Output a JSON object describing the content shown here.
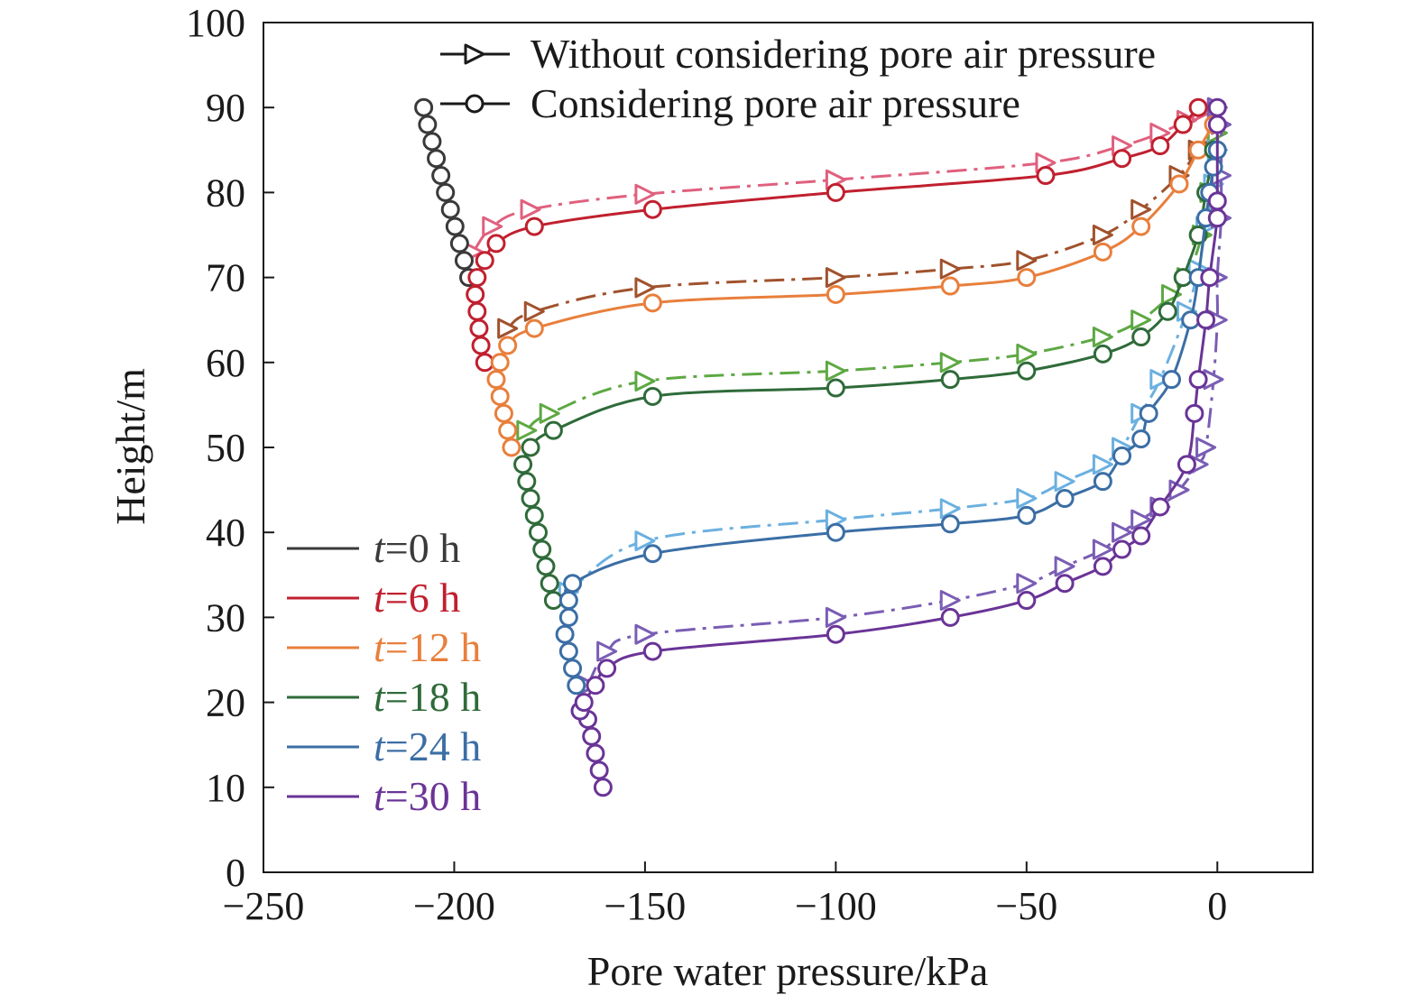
{
  "chart_data": {
    "type": "line",
    "title": "",
    "xlabel": "Pore water pressure/kPa",
    "ylabel": "Height/m",
    "xlim": [
      -250,
      25
    ],
    "ylim": [
      0,
      100
    ],
    "xticks": [
      -250,
      -200,
      -150,
      -100,
      -50,
      0
    ],
    "xtick_labels": [
      "−250",
      "−200",
      "−150",
      "−100",
      "−50",
      "0"
    ],
    "yticks": [
      0,
      10,
      20,
      30,
      40,
      50,
      60,
      70,
      80,
      90,
      100
    ],
    "ytick_labels": [
      "0",
      "10",
      "20",
      "30",
      "40",
      "50",
      "60",
      "70",
      "80",
      "90",
      "100"
    ],
    "grid": false,
    "legends": {
      "method": {
        "placement": "top-right",
        "entries": [
          {
            "label": "Without considering pore air pressure",
            "marker": "triangle-right",
            "line": "dash-dot"
          },
          {
            "label": "Considering pore air pressure",
            "marker": "circle",
            "line": "solid"
          }
        ]
      },
      "time": {
        "placement": "lower-left",
        "entries": [
          {
            "label_prefix": "t",
            "label_suffix": "=0 h",
            "color": "#3a3a3a"
          },
          {
            "label_prefix": "t",
            "label_suffix": "=6 h",
            "color": "#c0202f"
          },
          {
            "label_prefix": "t",
            "label_suffix": "=12 h",
            "color": "#e87f3c"
          },
          {
            "label_prefix": "t",
            "label_suffix": "=18 h",
            "color": "#2f6b3a"
          },
          {
            "label_prefix": "t",
            "label_suffix": "=24 h",
            "color": "#3b6ea5"
          },
          {
            "label_prefix": "t",
            "label_suffix": "=30 h",
            "color": "#6a3497"
          }
        ]
      }
    },
    "series": [
      {
        "time": "t=0 h",
        "method": "considering",
        "color": "#3a3a3a",
        "points": [
          [
            -208,
            90
          ],
          [
            -207,
            88
          ],
          [
            -205.8,
            86
          ],
          [
            -204.7,
            84
          ],
          [
            -203.5,
            82
          ],
          [
            -202.3,
            80
          ],
          [
            -201,
            78
          ],
          [
            -199.8,
            76
          ],
          [
            -198.6,
            74
          ],
          [
            -197.4,
            72
          ],
          [
            -196.2,
            70
          ]
        ],
        "markers": true
      },
      {
        "time": "t=6 h",
        "method": "without",
        "color": "#e0607e",
        "points": [
          [
            -195,
            73
          ],
          [
            -190,
            76
          ],
          [
            -180,
            78
          ],
          [
            -150,
            79.8
          ],
          [
            -100,
            81.5
          ],
          [
            -45,
            83.5
          ],
          [
            -25,
            85.5
          ],
          [
            -15,
            87
          ],
          [
            -8,
            88.5
          ],
          [
            -4,
            89.5
          ],
          [
            0,
            90
          ]
        ],
        "markers": true
      },
      {
        "time": "t=6 h",
        "method": "considering",
        "color": "#c0202f",
        "points": [
          [
            -192,
            60
          ],
          [
            -193,
            62
          ],
          [
            -193.5,
            64
          ],
          [
            -194,
            66
          ],
          [
            -194.5,
            68
          ],
          [
            -194,
            70
          ],
          [
            -192,
            72
          ],
          [
            -189,
            74
          ],
          [
            -179,
            76
          ],
          [
            -148,
            78
          ],
          [
            -100,
            80
          ],
          [
            -45,
            82
          ],
          [
            -25,
            84
          ],
          [
            -15,
            85.5
          ],
          [
            -9,
            88
          ],
          [
            -5,
            90
          ]
        ],
        "markers": true
      },
      {
        "time": "t=12 h",
        "method": "without",
        "color": "#a0522d",
        "points": [
          [
            -186,
            64
          ],
          [
            -179,
            66
          ],
          [
            -150,
            68.8
          ],
          [
            -100,
            70
          ],
          [
            -70,
            71
          ],
          [
            -50,
            72
          ],
          [
            -30,
            75
          ],
          [
            -20,
            78
          ],
          [
            -10,
            82
          ],
          [
            -5,
            85
          ],
          [
            0,
            87
          ]
        ],
        "markers": true
      },
      {
        "time": "t=12 h",
        "method": "considering",
        "color": "#e87f3c",
        "points": [
          [
            -185,
            50
          ],
          [
            -186,
            52
          ],
          [
            -187,
            54
          ],
          [
            -188,
            56
          ],
          [
            -189,
            58
          ],
          [
            -188,
            60
          ],
          [
            -186,
            62
          ],
          [
            -179,
            64
          ],
          [
            -148,
            67
          ],
          [
            -100,
            68
          ],
          [
            -70,
            69
          ],
          [
            -50,
            70
          ],
          [
            -30,
            73
          ],
          [
            -20,
            76
          ],
          [
            -10,
            81
          ],
          [
            -5,
            85
          ],
          [
            -1,
            88
          ]
        ],
        "markers": true
      },
      {
        "time": "t=18 h",
        "method": "without",
        "color": "#5ea843",
        "points": [
          [
            -181,
            52
          ],
          [
            -175,
            54
          ],
          [
            -150,
            57.8
          ],
          [
            -100,
            59
          ],
          [
            -70,
            60
          ],
          [
            -50,
            61
          ],
          [
            -30,
            63
          ],
          [
            -20,
            65
          ],
          [
            -12,
            68
          ],
          [
            -8,
            70
          ],
          [
            -4,
            75
          ],
          [
            -2,
            80
          ],
          [
            0,
            85
          ],
          [
            0,
            87
          ]
        ],
        "markers": true
      },
      {
        "time": "t=18 h",
        "method": "considering",
        "color": "#2f6b3a",
        "points": [
          [
            -174,
            32
          ],
          [
            -175,
            34
          ],
          [
            -176,
            36
          ],
          [
            -177,
            38
          ],
          [
            -178,
            40
          ],
          [
            -179,
            42
          ],
          [
            -180,
            44
          ],
          [
            -181,
            46
          ],
          [
            -182,
            48
          ],
          [
            -180,
            50
          ],
          [
            -174,
            52
          ],
          [
            -148,
            56
          ],
          [
            -100,
            57
          ],
          [
            -70,
            58
          ],
          [
            -50,
            59
          ],
          [
            -30,
            61
          ],
          [
            -20,
            63
          ],
          [
            -13,
            66
          ],
          [
            -9,
            70
          ],
          [
            -5,
            75
          ],
          [
            -3,
            80
          ],
          [
            -1,
            85
          ]
        ],
        "markers": true
      },
      {
        "time": "t=24 h",
        "method": "without",
        "color": "#6bb0e0",
        "points": [
          [
            -170,
            33
          ],
          [
            -150,
            39
          ],
          [
            -100,
            41.5
          ],
          [
            -70,
            42.8
          ],
          [
            -50,
            44
          ],
          [
            -40,
            46
          ],
          [
            -30,
            48
          ],
          [
            -25,
            50
          ],
          [
            -20,
            54
          ],
          [
            -15,
            58
          ],
          [
            -8,
            66
          ],
          [
            -5,
            71
          ],
          [
            -3,
            76
          ],
          [
            -1,
            81
          ],
          [
            0,
            85
          ]
        ],
        "markers": true
      },
      {
        "time": "t=24 h",
        "method": "considering",
        "color": "#3b6ea5",
        "points": [
          [
            -168,
            22
          ],
          [
            -169,
            24
          ],
          [
            -170,
            26
          ],
          [
            -171,
            28
          ],
          [
            -170,
            30
          ],
          [
            -170,
            32
          ],
          [
            -169,
            34
          ],
          [
            -148,
            37.5
          ],
          [
            -100,
            40
          ],
          [
            -70,
            41
          ],
          [
            -50,
            42
          ],
          [
            -40,
            44
          ],
          [
            -30,
            46
          ],
          [
            -25,
            49
          ],
          [
            -20,
            51
          ],
          [
            -18,
            54
          ],
          [
            -12,
            58
          ],
          [
            -7,
            65
          ],
          [
            -5,
            70
          ],
          [
            -3,
            77
          ],
          [
            -2,
            80
          ],
          [
            -1,
            83
          ],
          [
            0,
            85
          ]
        ],
        "markers": true
      },
      {
        "time": "t=30 h",
        "method": "without",
        "color": "#7a5db4",
        "points": [
          [
            -165,
            22
          ],
          [
            -160,
            26
          ],
          [
            -150,
            28
          ],
          [
            -100,
            30
          ],
          [
            -70,
            32
          ],
          [
            -50,
            34
          ],
          [
            -40,
            36
          ],
          [
            -30,
            38
          ],
          [
            -25,
            40
          ],
          [
            -20,
            41.5
          ],
          [
            -15,
            43
          ],
          [
            -10,
            45
          ],
          [
            -5,
            48
          ],
          [
            -3,
            50
          ],
          [
            -1,
            58
          ],
          [
            0,
            65
          ],
          [
            0,
            70
          ],
          [
            1,
            77
          ],
          [
            1,
            82
          ],
          [
            1,
            88
          ],
          [
            0,
            90
          ]
        ],
        "markers": true
      },
      {
        "time": "t=30 h",
        "method": "considering",
        "color": "#6a3497",
        "points": [
          [
            -161,
            10
          ],
          [
            -162,
            12
          ],
          [
            -163,
            14
          ],
          [
            -164,
            16
          ],
          [
            -165,
            18
          ],
          [
            -167,
            19
          ],
          [
            -166,
            20
          ],
          [
            -163,
            22
          ],
          [
            -160,
            24
          ],
          [
            -148,
            26
          ],
          [
            -100,
            28
          ],
          [
            -70,
            30
          ],
          [
            -50,
            32
          ],
          [
            -40,
            34
          ],
          [
            -30,
            36
          ],
          [
            -25,
            38
          ],
          [
            -20,
            39.6
          ],
          [
            -15,
            43
          ],
          [
            -8,
            48
          ],
          [
            -6,
            54
          ],
          [
            -5,
            58
          ],
          [
            -3,
            65
          ],
          [
            -2,
            70
          ],
          [
            0,
            77
          ],
          [
            0,
            79
          ],
          [
            0,
            88
          ],
          [
            0,
            90
          ]
        ],
        "markers": true
      }
    ]
  }
}
